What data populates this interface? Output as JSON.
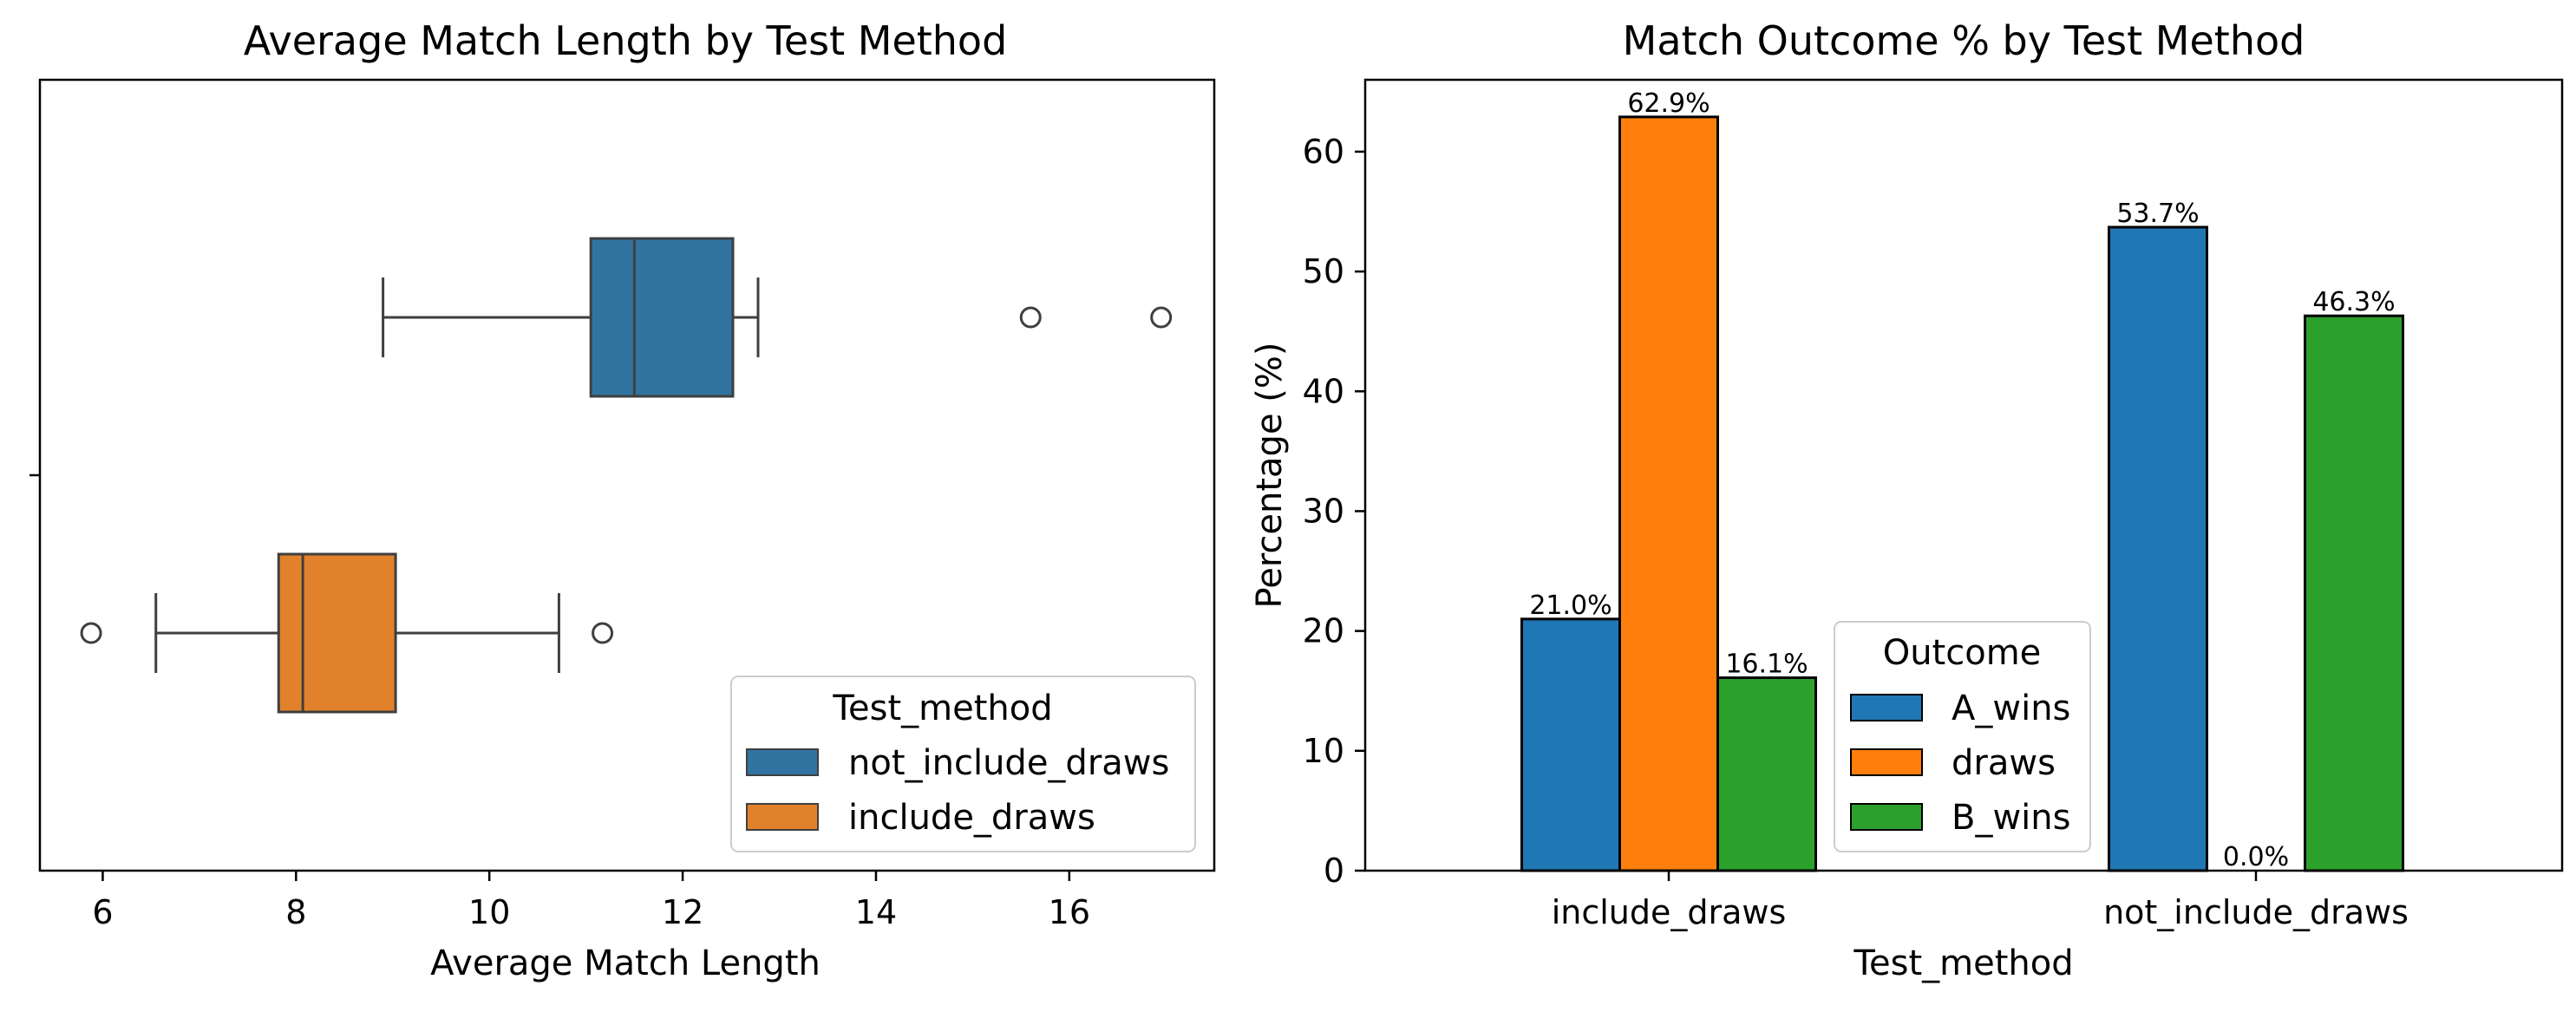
{
  "chart_data": [
    {
      "type": "box",
      "title": "Average Match Length by Test Method",
      "xlabel": "Average Match Length",
      "ylabel": "",
      "xlim": [
        5.35,
        17.5
      ],
      "xticks": [
        6,
        8,
        10,
        12,
        14,
        16
      ],
      "grid": false,
      "legend": {
        "title": "Test_method",
        "placement": "lower-right",
        "entries": [
          {
            "label": "not_include_draws",
            "color": "#3274A1"
          },
          {
            "label": "include_draws",
            "color": "#E1812C"
          }
        ]
      },
      "series": [
        {
          "name": "not_include_draws",
          "color": "#3274A1",
          "whisker_low": 8.9,
          "q1": 11.05,
          "median": 11.5,
          "q3": 12.52,
          "whisker_high": 12.78,
          "outliers": [
            15.6,
            16.95
          ]
        },
        {
          "name": "include_draws",
          "color": "#E1812C",
          "whisker_low": 6.55,
          "q1": 7.82,
          "median": 8.07,
          "q3": 9.03,
          "whisker_high": 10.72,
          "outliers": [
            5.88,
            11.17
          ]
        }
      ]
    },
    {
      "type": "bar",
      "title": "Match Outcome % by Test Method",
      "xlabel": "Test_method",
      "ylabel": "Percentage (%)",
      "ylim": [
        0,
        66
      ],
      "yticks": [
        0,
        10,
        20,
        30,
        40,
        50,
        60
      ],
      "grid": false,
      "categories": [
        "include_draws",
        "not_include_draws"
      ],
      "legend": {
        "title": "Outcome",
        "placement": "bottom-center"
      },
      "series": [
        {
          "name": "A_wins",
          "color": "#1F77B4",
          "values": [
            21.0,
            53.7
          ],
          "labels": [
            "21.0%",
            "53.7%"
          ]
        },
        {
          "name": "draws",
          "color": "#FF7F0E",
          "values": [
            62.9,
            0.0
          ],
          "labels": [
            "62.9%",
            "0.0%"
          ]
        },
        {
          "name": "B_wins",
          "color": "#2CA02C",
          "values": [
            16.1,
            46.3
          ],
          "labels": [
            "16.1%",
            "46.3%"
          ]
        }
      ]
    }
  ]
}
